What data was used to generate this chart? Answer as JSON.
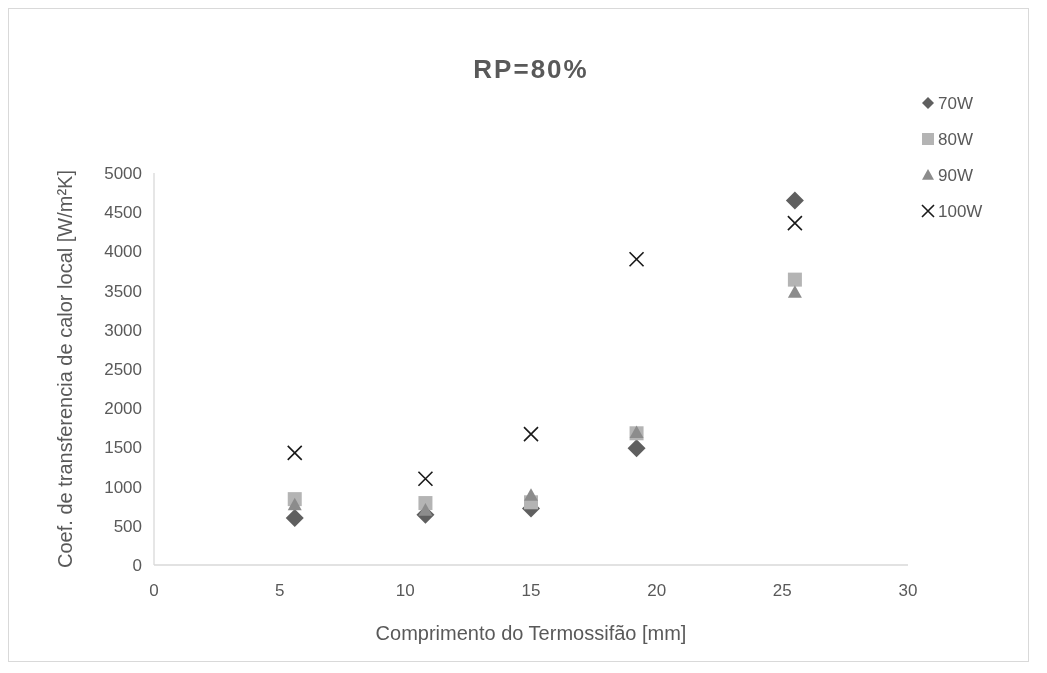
{
  "chart_data": {
    "type": "scatter",
    "title": "RP=80%",
    "xlabel": "Comprimento do Termossifão [mm]",
    "ylabel": "Coef. de transferencia de calor local [W/m²K]",
    "x": [
      5.6,
      10.8,
      15,
      19.2,
      25.5
    ],
    "series": [
      {
        "name": "70W",
        "color": "#5f5f5f",
        "marker": "diamond",
        "values": [
          600,
          640,
          720,
          1490,
          4650
        ]
      },
      {
        "name": "80W",
        "color": "#b4b4b4",
        "marker": "square",
        "values": [
          840,
          790,
          800,
          1680,
          3640
        ]
      },
      {
        "name": "90W",
        "color": "#8c8c8c",
        "marker": "triangle",
        "values": [
          770,
          700,
          890,
          1690,
          3480
        ]
      },
      {
        "name": "100W",
        "color": "#1a1a1a",
        "marker": "cross",
        "values": [
          1430,
          1100,
          1670,
          3900,
          4360
        ]
      }
    ],
    "xlim": [
      0,
      30
    ],
    "xticks": [
      0,
      5,
      10,
      15,
      20,
      25,
      30
    ],
    "ylim": [
      0,
      5000
    ],
    "yticks": [
      0,
      500,
      1000,
      1500,
      2000,
      2500,
      3000,
      3500,
      4000,
      4500,
      5000
    ],
    "grid": false,
    "legend": "top right"
  }
}
